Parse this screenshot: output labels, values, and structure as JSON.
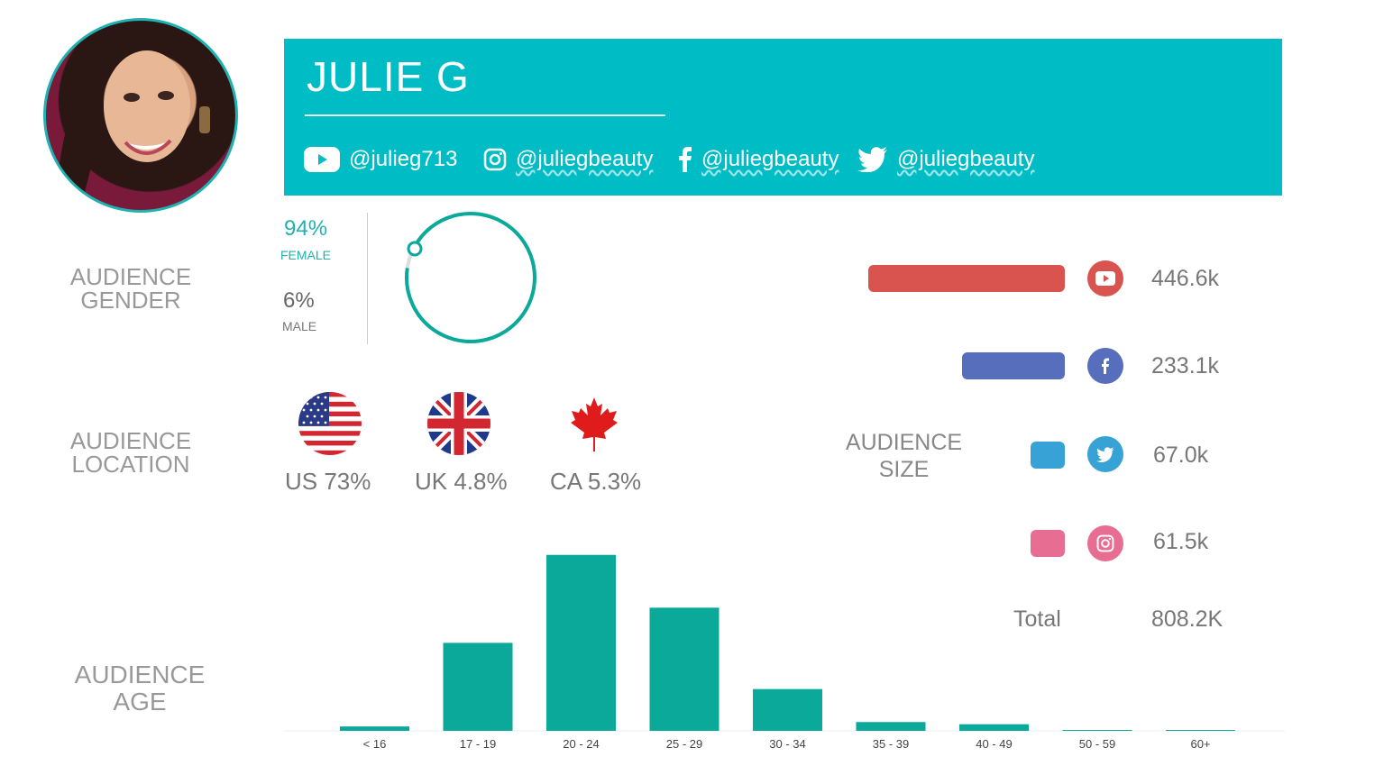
{
  "profile": {
    "name": "JULIE G",
    "handles": [
      {
        "network": "youtube",
        "icon": "youtube-icon",
        "handle": "@julieg713"
      },
      {
        "network": "instagram",
        "icon": "instagram-icon",
        "handle": "@juliegbeauty"
      },
      {
        "network": "facebook",
        "icon": "facebook-icon",
        "handle": "@juliegbeauty"
      },
      {
        "network": "twitter",
        "icon": "twitter-icon",
        "handle": "@juliegbeauty"
      }
    ]
  },
  "colors": {
    "accent": "#00bcc5",
    "teal": "#0aa99a",
    "youtube": "#d9534f",
    "facebook": "#566ebb",
    "twitter": "#36a2d6",
    "instagram": "#e86d92"
  },
  "gender": {
    "label_line1": "AUDIENCE",
    "label_line2": "GENDER",
    "female_pct": "94%",
    "female_label": "FEMALE",
    "male_pct": "6%",
    "male_label": "MALE",
    "female_fraction": 0.94
  },
  "location": {
    "label_line1": "AUDIENCE",
    "label_line2": "LOCATION",
    "countries": [
      {
        "flag": "us-flag",
        "text": "US 73%"
      },
      {
        "flag": "uk-flag",
        "text": "UK 4.8%"
      },
      {
        "flag": "ca-flag",
        "text": "CA 5.3%"
      }
    ]
  },
  "audience_size": {
    "label_line1": "AUDIENCE",
    "label_line2": "SIZE",
    "networks": [
      {
        "network": "youtube",
        "icon": "youtube-icon",
        "value": "446.6k",
        "amount": 446.6
      },
      {
        "network": "facebook",
        "icon": "facebook-icon",
        "value": "233.1k",
        "amount": 233.1
      },
      {
        "network": "twitter",
        "icon": "twitter-icon",
        "value": "67.0k",
        "amount": 67.0
      },
      {
        "network": "instagram",
        "icon": "instagram-icon",
        "value": "61.5k",
        "amount": 61.5
      }
    ],
    "total_label": "Total",
    "total_value": "808.2K"
  },
  "age": {
    "label_line1": "AUDIENCE",
    "label_line2": "AGE"
  },
  "chart_data": {
    "type": "bar",
    "categories": [
      "< 16",
      "17 - 19",
      "20 - 24",
      "25 - 29",
      "30 - 34",
      "35 - 39",
      "40 - 49",
      "50 - 59",
      "60+"
    ],
    "values": [
      1,
      20,
      40,
      28,
      9.5,
      2.0,
      1.5,
      0.2,
      0.1
    ],
    "ylim": [
      0,
      42
    ],
    "grid": false
  }
}
